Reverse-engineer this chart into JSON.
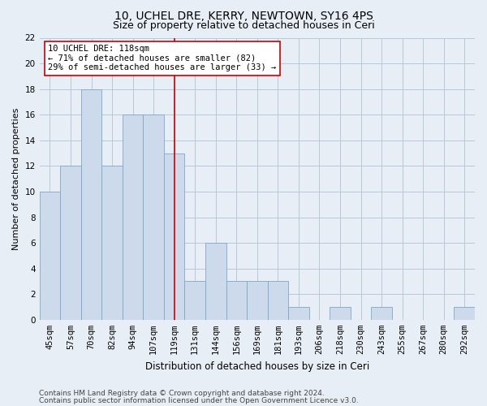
{
  "title": "10, UCHEL DRE, KERRY, NEWTOWN, SY16 4PS",
  "subtitle": "Size of property relative to detached houses in Ceri",
  "xlabel": "Distribution of detached houses by size in Ceri",
  "ylabel": "Number of detached properties",
  "categories": [
    "45sqm",
    "57sqm",
    "70sqm",
    "82sqm",
    "94sqm",
    "107sqm",
    "119sqm",
    "131sqm",
    "144sqm",
    "156sqm",
    "169sqm",
    "181sqm",
    "193sqm",
    "206sqm",
    "218sqm",
    "230sqm",
    "243sqm",
    "255sqm",
    "267sqm",
    "280sqm",
    "292sqm"
  ],
  "values": [
    10,
    12,
    18,
    12,
    16,
    16,
    13,
    3,
    6,
    3,
    3,
    3,
    1,
    0,
    1,
    0,
    1,
    0,
    0,
    0,
    1
  ],
  "bar_color": "#ccdaeb",
  "bar_edge_color": "#7aaacb",
  "bar_edge_width": 0.6,
  "vline_index": 6,
  "vline_color": "#cc0000",
  "ylim": [
    0,
    22
  ],
  "yticks": [
    0,
    2,
    4,
    6,
    8,
    10,
    12,
    14,
    16,
    18,
    20,
    22
  ],
  "grid_color": "#b8c8d8",
  "background_color": "#e8eef5",
  "annotation_title": "10 UCHEL DRE: 118sqm",
  "annotation_line1": "← 71% of detached houses are smaller (82)",
  "annotation_line2": "29% of semi-detached houses are larger (33) →",
  "annotation_box_color": "#ffffff",
  "annotation_box_edge_color": "#cc0000",
  "footer1": "Contains HM Land Registry data © Crown copyright and database right 2024.",
  "footer2": "Contains public sector information licensed under the Open Government Licence v3.0.",
  "title_fontsize": 10,
  "subtitle_fontsize": 9,
  "xlabel_fontsize": 8.5,
  "ylabel_fontsize": 8,
  "tick_fontsize": 7.5,
  "annotation_fontsize": 7.5,
  "footer_fontsize": 6.5
}
